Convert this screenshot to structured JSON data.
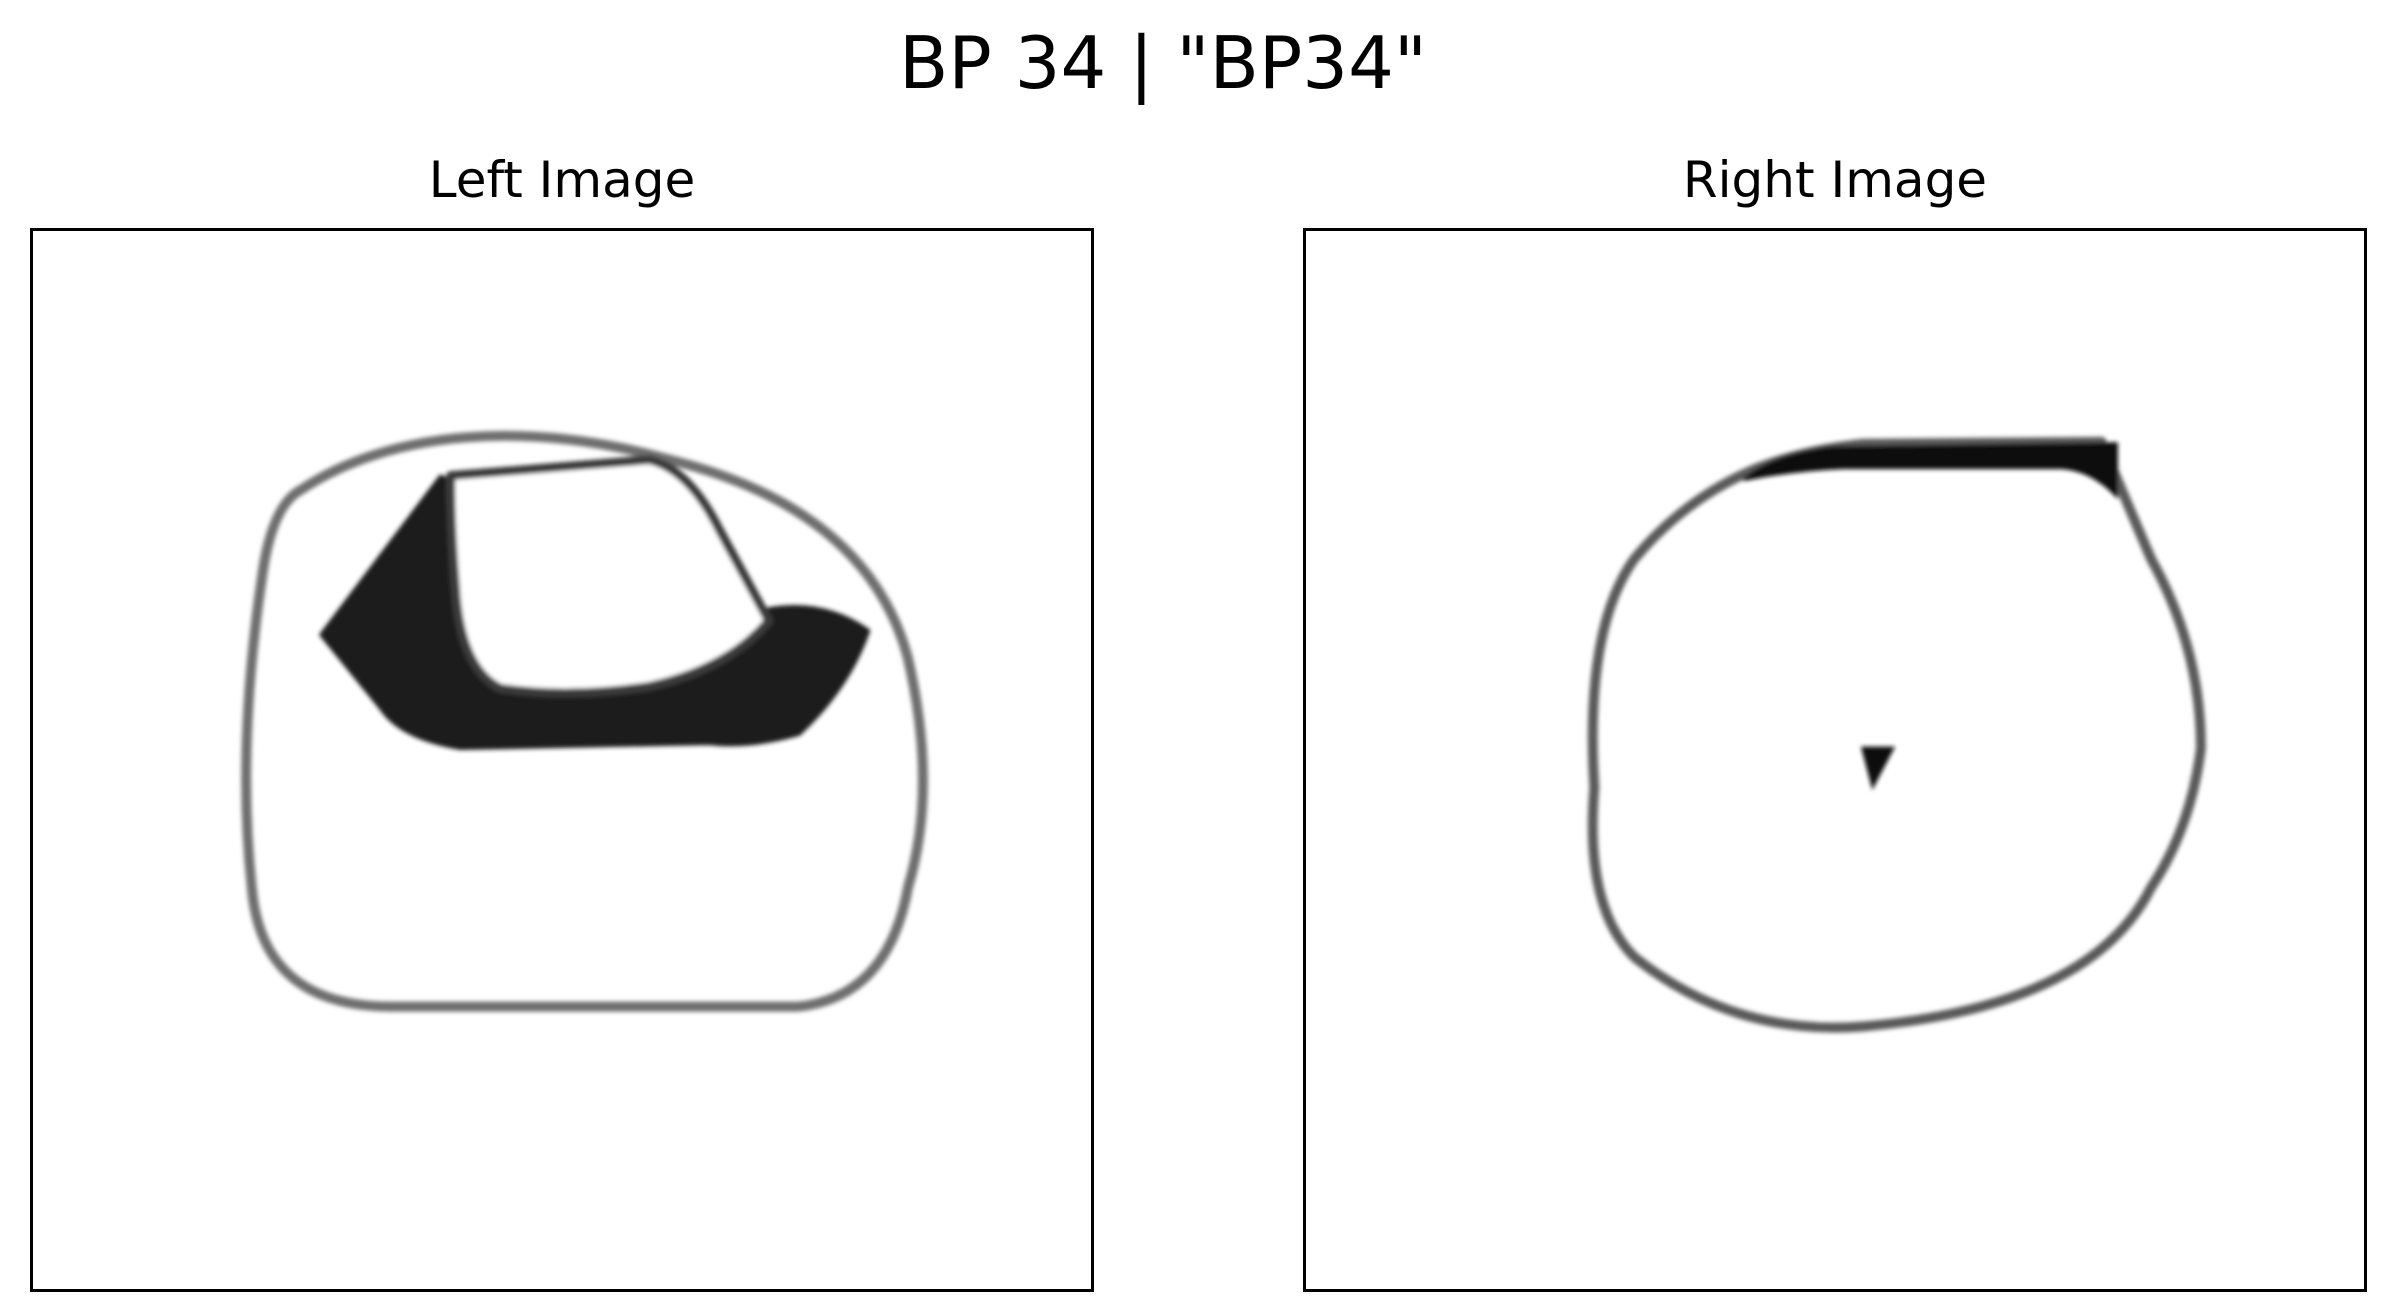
{
  "figure": {
    "title": "BP 34 | \"BP34\""
  },
  "panels": [
    {
      "title": "Left Image"
    },
    {
      "title": "Right Image"
    }
  ],
  "colors": {
    "background": "#ffffff",
    "ink": "#000000",
    "dark_fill": "#1a1a1a",
    "stroke_gray": "#7a7a7a"
  }
}
